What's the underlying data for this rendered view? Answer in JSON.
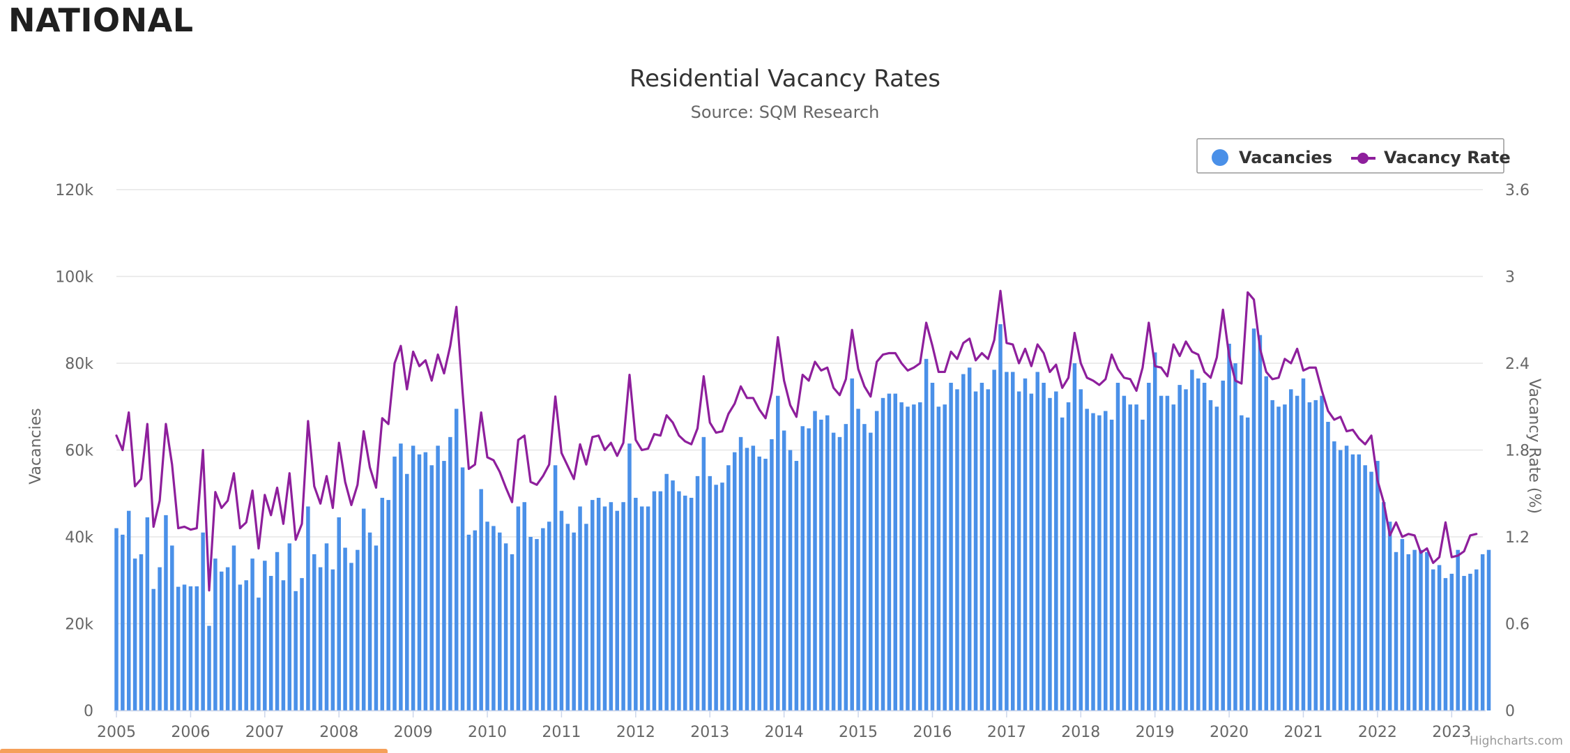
{
  "page": {
    "heading": "NATIONAL",
    "credits": "Highcharts.com"
  },
  "colors": {
    "bars": "#4a90e8",
    "line": "#8e1f9c",
    "grid": "#e6e6e6",
    "legend_border": "#999999",
    "bottom_strip": "#f5a05a"
  },
  "chart_data": {
    "type": "bar+line",
    "title": "Residential Vacancy Rates",
    "subtitle": "Source: SQM Research",
    "xlabel": "",
    "ylabel": "Vacancies",
    "y2label": "Vacancy Rate (%)",
    "xlim": [
      2005,
      2023.42
    ],
    "ylim": [
      0,
      120000
    ],
    "y2lim": [
      0,
      3.6
    ],
    "x_ticks": [
      "2005",
      "2006",
      "2007",
      "2008",
      "2009",
      "2010",
      "2011",
      "2012",
      "2013",
      "2014",
      "2015",
      "2016",
      "2017",
      "2018",
      "2019",
      "2020",
      "2021",
      "2022",
      "2023"
    ],
    "y_ticks": [
      "0",
      "20k",
      "40k",
      "60k",
      "80k",
      "100k",
      "120k"
    ],
    "y2_ticks": [
      "0",
      "0.6",
      "1.2",
      "1.8",
      "2.4",
      "3",
      "3.6"
    ],
    "grid": true,
    "legend_position": "top-right",
    "start_month": "2005-01",
    "series": [
      {
        "name": "Vacancies",
        "type": "column",
        "values": [
          42000,
          40500,
          46000,
          35000,
          36000,
          44500,
          28000,
          33000,
          45000,
          38000,
          28500,
          29000,
          28600,
          28600,
          41000,
          19500,
          35000,
          32000,
          33000,
          38000,
          29000,
          30000,
          35000,
          26000,
          34500,
          31000,
          36500,
          30000,
          38500,
          27500,
          30500,
          47000,
          36000,
          33000,
          38500,
          32500,
          44500,
          37500,
          34000,
          37000,
          46500,
          41000,
          38000,
          49000,
          48500,
          58500,
          61500,
          54500,
          61000,
          59000,
          59500,
          56500,
          61000,
          57500,
          63000,
          69500,
          56000,
          40500,
          41500,
          51000,
          43500,
          42500,
          41000,
          38500,
          36000,
          47000,
          48000,
          40000,
          39500,
          42000,
          43500,
          56500,
          46000,
          43000,
          41000,
          47000,
          43000,
          48500,
          49000,
          47000,
          48000,
          46000,
          48000,
          61500,
          49000,
          47000,
          47000,
          50500,
          50500,
          54500,
          53000,
          50500,
          49500,
          49000,
          54000,
          63000,
          54000,
          52000,
          52500,
          56500,
          59500,
          63000,
          60500,
          61000,
          58500,
          58000,
          62500,
          72500,
          64500,
          60000,
          57500,
          65500,
          65000,
          69000,
          67000,
          68000,
          64000,
          63000,
          66000,
          76500,
          69500,
          66000,
          64000,
          69000,
          72000,
          73000,
          73000,
          71000,
          70000,
          70500,
          71000,
          81000,
          75500,
          70000,
          70500,
          75500,
          74000,
          77500,
          79000,
          73500,
          75500,
          74000,
          78500,
          89000,
          78000,
          78000,
          73500,
          76500,
          73000,
          78000,
          75500,
          72000,
          73500,
          67500,
          71000,
          80000,
          74000,
          69500,
          68500,
          68000,
          69000,
          67000,
          75500,
          72500,
          70500,
          70500,
          67000,
          75500,
          82500,
          72500,
          72500,
          70500,
          75000,
          74000,
          78500,
          76500,
          75500,
          71500,
          70000,
          76000,
          84500,
          80000,
          68000,
          67500,
          88000,
          86500,
          77000,
          71500,
          70000,
          70500,
          74000,
          72500,
          76500,
          71000,
          71500,
          72500,
          66500,
          62000,
          60000,
          61000,
          59000,
          59000,
          56500,
          55000,
          57500,
          48000,
          43500,
          36500,
          39500,
          36000,
          37000,
          37000,
          36500,
          32500,
          33500,
          30500,
          31500,
          37000,
          31000,
          31500,
          32500,
          36000,
          37000
        ],
        "color": "#4a90e8"
      },
      {
        "name": "Vacancy Rate",
        "type": "line",
        "values": [
          1.9,
          1.8,
          2.06,
          1.55,
          1.6,
          1.98,
          1.27,
          1.45,
          1.98,
          1.7,
          1.26,
          1.27,
          1.25,
          1.26,
          1.8,
          0.83,
          1.51,
          1.4,
          1.45,
          1.64,
          1.26,
          1.3,
          1.52,
          1.12,
          1.49,
          1.35,
          1.54,
          1.29,
          1.64,
          1.18,
          1.29,
          2.0,
          1.55,
          1.43,
          1.62,
          1.4,
          1.85,
          1.58,
          1.42,
          1.56,
          1.93,
          1.68,
          1.54,
          2.02,
          1.98,
          2.4,
          2.52,
          2.22,
          2.48,
          2.38,
          2.42,
          2.28,
          2.46,
          2.33,
          2.52,
          2.79,
          2.2,
          1.67,
          1.7,
          2.06,
          1.75,
          1.73,
          1.65,
          1.54,
          1.44,
          1.87,
          1.9,
          1.58,
          1.56,
          1.62,
          1.7,
          2.17,
          1.78,
          1.69,
          1.6,
          1.84,
          1.7,
          1.89,
          1.9,
          1.8,
          1.85,
          1.76,
          1.85,
          2.32,
          1.87,
          1.8,
          1.81,
          1.91,
          1.9,
          2.04,
          1.99,
          1.9,
          1.86,
          1.84,
          1.95,
          2.31,
          1.99,
          1.92,
          1.93,
          2.05,
          2.12,
          2.24,
          2.16,
          2.16,
          2.08,
          2.02,
          2.2,
          2.58,
          2.28,
          2.11,
          2.03,
          2.32,
          2.28,
          2.41,
          2.35,
          2.37,
          2.23,
          2.18,
          2.29,
          2.63,
          2.36,
          2.24,
          2.17,
          2.41,
          2.46,
          2.47,
          2.47,
          2.4,
          2.35,
          2.37,
          2.4,
          2.68,
          2.52,
          2.34,
          2.34,
          2.48,
          2.43,
          2.54,
          2.57,
          2.42,
          2.47,
          2.43,
          2.56,
          2.9,
          2.54,
          2.53,
          2.4,
          2.5,
          2.38,
          2.53,
          2.47,
          2.34,
          2.39,
          2.23,
          2.3,
          2.61,
          2.4,
          2.3,
          2.28,
          2.25,
          2.29,
          2.46,
          2.36,
          2.3,
          2.29,
          2.21,
          2.37,
          2.68,
          2.38,
          2.37,
          2.31,
          2.53,
          2.45,
          2.55,
          2.48,
          2.46,
          2.34,
          2.3,
          2.44,
          2.77,
          2.45,
          2.28,
          2.26,
          2.89,
          2.84,
          2.5,
          2.34,
          2.29,
          2.3,
          2.43,
          2.4,
          2.5,
          2.35,
          2.37,
          2.37,
          2.21,
          2.07,
          2.01,
          2.03,
          1.93,
          1.94,
          1.88,
          1.84,
          1.9,
          1.59,
          1.44,
          1.21,
          1.3,
          1.2,
          1.22,
          1.21,
          1.09,
          1.12,
          1.02,
          1.06,
          1.3,
          1.06,
          1.07,
          1.1,
          1.21,
          1.22
        ],
        "color": "#8e1f9c"
      }
    ]
  }
}
